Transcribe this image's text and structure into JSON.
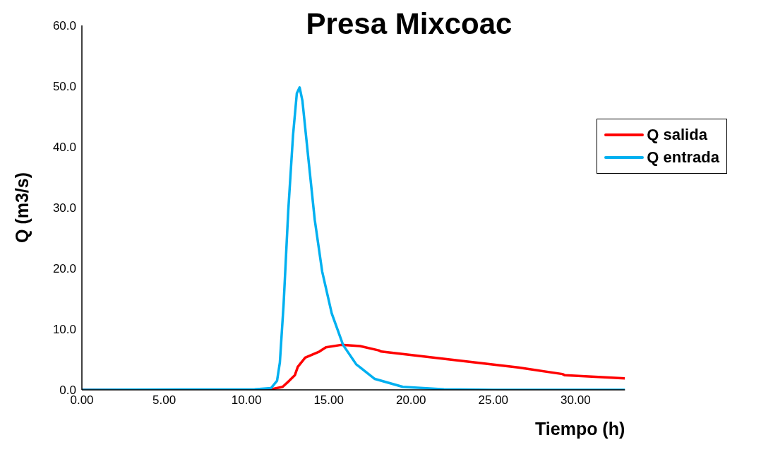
{
  "chart_data": {
    "type": "line",
    "title": "Presa Mixcoac",
    "xlabel": "Tiempo (h)",
    "ylabel": "Q (m3/s)",
    "xlim": [
      0,
      33
    ],
    "xticks": [
      {
        "value": 0,
        "label": "0.00"
      },
      {
        "value": 5,
        "label": "5.00"
      },
      {
        "value": 10,
        "label": "10.00"
      },
      {
        "value": 15,
        "label": "15.00"
      },
      {
        "value": 20,
        "label": "20.00"
      },
      {
        "value": 25,
        "label": "25.00"
      },
      {
        "value": 30,
        "label": "30.00"
      }
    ],
    "ylim": [
      0,
      60
    ],
    "yticks": [
      {
        "value": 0,
        "label": "0.0"
      },
      {
        "value": 10,
        "label": "10.0"
      },
      {
        "value": 20,
        "label": "20.0"
      },
      {
        "value": 30,
        "label": "30.0"
      },
      {
        "value": 40,
        "label": "40.0"
      },
      {
        "value": 50,
        "label": "50.0"
      },
      {
        "value": 60,
        "label": "60.0"
      }
    ],
    "grid": false,
    "legend": "top right",
    "marker": "none",
    "line_style": "solid",
    "series": [
      {
        "name": "Q salida",
        "color": "#ff0000",
        "x": [
          0,
          11,
          11.5,
          12.2,
          12.6,
          12.94,
          13.12,
          13.57,
          14.43,
          14.83,
          15.75,
          16.9,
          18.04,
          18.2,
          26.5,
          29.2,
          29.35,
          33
        ],
        "values": [
          0,
          0,
          0.1,
          0.5,
          1.5,
          2.4,
          3.8,
          5.3,
          6.3,
          7.0,
          7.4,
          7.2,
          6.5,
          6.3,
          3.7,
          2.6,
          2.4,
          1.9
        ]
      },
      {
        "name": "Q entrada",
        "color": "#00b0f0",
        "x": [
          0,
          10.5,
          11.5,
          11.86,
          12.03,
          12.26,
          12.54,
          12.83,
          13.06,
          13.23,
          13.4,
          13.75,
          14.15,
          14.6,
          15.18,
          15.87,
          16.67,
          17.8,
          19.5,
          22,
          25,
          33
        ],
        "values": [
          0,
          0.1,
          0.3,
          1.5,
          4.5,
          14.2,
          29.5,
          41.9,
          48.8,
          49.8,
          47.6,
          38.4,
          28.0,
          19.5,
          12.6,
          7.4,
          4.2,
          1.8,
          0.5,
          0.1,
          0,
          0
        ]
      }
    ]
  }
}
